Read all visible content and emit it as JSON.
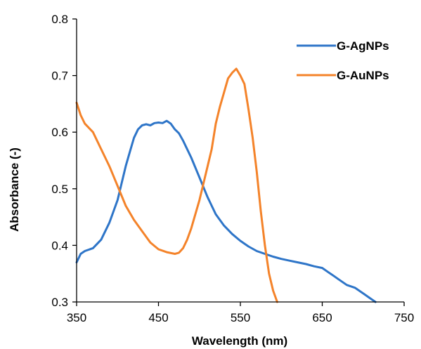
{
  "chart_data": {
    "type": "line",
    "title": "",
    "xlabel": "Wavelength (nm)",
    "ylabel": "Absorbance (-)",
    "xlim": [
      350,
      750
    ],
    "ylim": [
      0.3,
      0.8
    ],
    "x_ticks": [
      "350",
      "450",
      "550",
      "650",
      "750"
    ],
    "y_ticks": [
      "0.3",
      "0.4",
      "0.5",
      "0.6",
      "0.7",
      "0.8"
    ],
    "grid": false,
    "legend_position": "top-right",
    "series": [
      {
        "name": "G-AgNPs",
        "color": "#2E75C8",
        "x": [
          350,
          355,
          360,
          370,
          380,
          390,
          400,
          405,
          410,
          415,
          420,
          425,
          430,
          435,
          440,
          445,
          450,
          455,
          460,
          465,
          470,
          475,
          480,
          490,
          500,
          510,
          520,
          530,
          540,
          550,
          560,
          570,
          580,
          590,
          600,
          610,
          620,
          630,
          640,
          650,
          655,
          660,
          665,
          670,
          680,
          690,
          700,
          710,
          715
        ],
        "y": [
          0.37,
          0.385,
          0.39,
          0.395,
          0.41,
          0.44,
          0.48,
          0.51,
          0.54,
          0.565,
          0.59,
          0.605,
          0.612,
          0.614,
          0.612,
          0.616,
          0.617,
          0.616,
          0.62,
          0.615,
          0.605,
          0.598,
          0.585,
          0.555,
          0.52,
          0.485,
          0.455,
          0.435,
          0.42,
          0.408,
          0.398,
          0.39,
          0.385,
          0.38,
          0.376,
          0.373,
          0.37,
          0.367,
          0.363,
          0.36,
          0.355,
          0.35,
          0.345,
          0.34,
          0.33,
          0.325,
          0.315,
          0.305,
          0.3
        ]
      },
      {
        "name": "G-AuNPs",
        "color": "#F4832A",
        "x": [
          350,
          355,
          360,
          370,
          380,
          390,
          400,
          410,
          420,
          430,
          440,
          450,
          460,
          470,
          475,
          480,
          485,
          490,
          500,
          510,
          515,
          520,
          525,
          530,
          535,
          540,
          545,
          550,
          555,
          560,
          565,
          570,
          575,
          580,
          585,
          590,
          595
        ],
        "y": [
          0.652,
          0.63,
          0.615,
          0.6,
          0.57,
          0.54,
          0.505,
          0.47,
          0.445,
          0.425,
          0.405,
          0.393,
          0.388,
          0.385,
          0.387,
          0.395,
          0.41,
          0.43,
          0.48,
          0.54,
          0.57,
          0.615,
          0.645,
          0.67,
          0.695,
          0.705,
          0.712,
          0.7,
          0.685,
          0.64,
          0.59,
          0.53,
          0.46,
          0.4,
          0.35,
          0.32,
          0.3
        ]
      }
    ]
  }
}
